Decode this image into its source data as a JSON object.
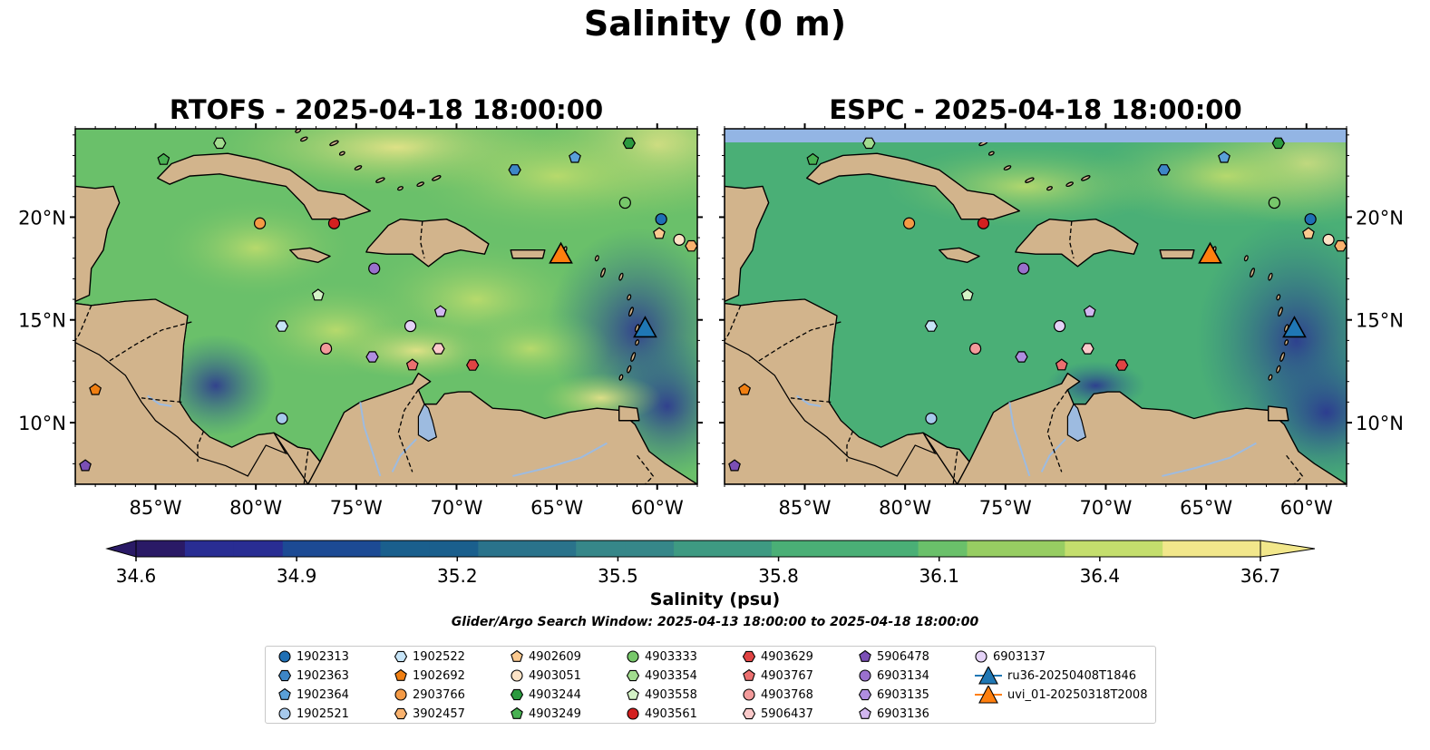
{
  "title": "Salinity (0 m)",
  "panels": [
    {
      "title": "RTOFS - 2025-04-18 18:00:00"
    },
    {
      "title": "ESPC - 2025-04-18 18:00:00"
    }
  ],
  "map": {
    "lon_range": [
      -89,
      -58
    ],
    "lat_range": [
      7,
      24.3
    ],
    "lon_ticks": [
      -85,
      -80,
      -75,
      -70,
      -65,
      -60
    ],
    "lon_tick_labels": [
      "85°W",
      "80°W",
      "75°W",
      "70°W",
      "65°W",
      "60°W"
    ],
    "lat_ticks": [
      10,
      15,
      20
    ],
    "lat_tick_labels": [
      "10°N",
      "15°N",
      "20°N"
    ],
    "colors": {
      "land": "#d2b48c",
      "lakes_rivers": "#9dbbe0",
      "no_data": "#93b5e4"
    }
  },
  "colorbar": {
    "label": "Salinity (psu)",
    "vmin": 34.6,
    "vmax": 36.7,
    "ticks": [
      "34.6",
      "34.9",
      "35.2",
      "35.5",
      "35.8",
      "36.1",
      "36.4",
      "36.7"
    ],
    "extend": "both",
    "colormap": "haline",
    "stops": [
      "#2a1a66",
      "#292d93",
      "#1c4a94",
      "#1a5f8d",
      "#2a738b",
      "#368789",
      "#3e9a82",
      "#4aaf76",
      "#6ac06a",
      "#97cd62",
      "#c4de6d",
      "#f2e78b"
    ]
  },
  "search_window": "Glider/Argo Search Window: 2025-04-13 18:00:00 to 2025-04-18 18:00:00",
  "observations": [
    {
      "id": "1902313",
      "marker": "circle",
      "color": "#1f6fb4",
      "lon": -59.8,
      "lat": 19.9
    },
    {
      "id": "1902363",
      "marker": "hexagon",
      "color": "#3d86c6",
      "lon": -67.1,
      "lat": 22.3
    },
    {
      "id": "1902364",
      "marker": "pentagon",
      "color": "#5aa0d8",
      "lon": -64.1,
      "lat": 22.9
    },
    {
      "id": "1902521",
      "marker": "circle",
      "color": "#a6c9ec",
      "lon": -78.7,
      "lat": 10.2
    },
    {
      "id": "1902522",
      "marker": "hexagon",
      "color": "#c6e4f7",
      "lon": -78.7,
      "lat": 14.7
    },
    {
      "id": "1902692",
      "marker": "pentagon",
      "color": "#f07f12",
      "lon": -88.0,
      "lat": 11.6
    },
    {
      "id": "2903766",
      "marker": "circle",
      "color": "#f49a45",
      "lon": -79.8,
      "lat": 19.7
    },
    {
      "id": "3902457",
      "marker": "hexagon",
      "color": "#f9b26e",
      "lon": -58.3,
      "lat": 18.6
    },
    {
      "id": "4902609",
      "marker": "pentagon",
      "color": "#fbc98f",
      "lon": -59.9,
      "lat": 19.2
    },
    {
      "id": "4903051",
      "marker": "circle",
      "color": "#fde3c6",
      "lon": -58.9,
      "lat": 18.9
    },
    {
      "id": "4903244",
      "marker": "hexagon",
      "color": "#2b9a3f",
      "lon": -61.4,
      "lat": 23.6
    },
    {
      "id": "4903249",
      "marker": "pentagon",
      "color": "#48b152",
      "lon": -84.6,
      "lat": 22.8
    },
    {
      "id": "4903333",
      "marker": "circle",
      "color": "#77c76a",
      "lon": -61.6,
      "lat": 20.7
    },
    {
      "id": "4903354",
      "marker": "hexagon",
      "color": "#a2dc8f",
      "lon": -81.8,
      "lat": 23.6
    },
    {
      "id": "4903558",
      "marker": "pentagon",
      "color": "#d4f2c6",
      "lon": -76.9,
      "lat": 16.2
    },
    {
      "id": "4903561",
      "marker": "circle",
      "color": "#d32020",
      "lon": -76.1,
      "lat": 19.7
    },
    {
      "id": "4903629",
      "marker": "hexagon",
      "color": "#e04444",
      "lon": -69.2,
      "lat": 12.8
    },
    {
      "id": "4903767",
      "marker": "pentagon",
      "color": "#ec7070",
      "lon": -72.2,
      "lat": 12.8
    },
    {
      "id": "4903768",
      "marker": "circle",
      "color": "#f39b9b",
      "lon": -76.5,
      "lat": 13.6
    },
    {
      "id": "5906437",
      "marker": "hexagon",
      "color": "#fbcaca",
      "lon": -70.9,
      "lat": 13.6
    },
    {
      "id": "5906478",
      "marker": "pentagon",
      "color": "#7b4fb5",
      "lon": -88.5,
      "lat": 7.9
    },
    {
      "id": "6903134",
      "marker": "circle",
      "color": "#9a70cd",
      "lon": -74.1,
      "lat": 17.5
    },
    {
      "id": "6903135",
      "marker": "hexagon",
      "color": "#b08ee0",
      "lon": -74.2,
      "lat": 13.2
    },
    {
      "id": "6903136",
      "marker": "pentagon",
      "color": "#d1b6f0",
      "lon": -70.8,
      "lat": 15.4
    },
    {
      "id": "6903137",
      "marker": "circle",
      "color": "#e4d2f7",
      "lon": -72.3,
      "lat": 14.7
    },
    {
      "id": "ru36-20250408T1846",
      "marker": "triangle",
      "color": "#1f77b4",
      "lon": -60.6,
      "lat": 14.6
    },
    {
      "id": "uvi_01-20250318T2008",
      "marker": "triangle",
      "color": "#ff7f0e",
      "lon": -64.8,
      "lat": 18.2
    }
  ]
}
